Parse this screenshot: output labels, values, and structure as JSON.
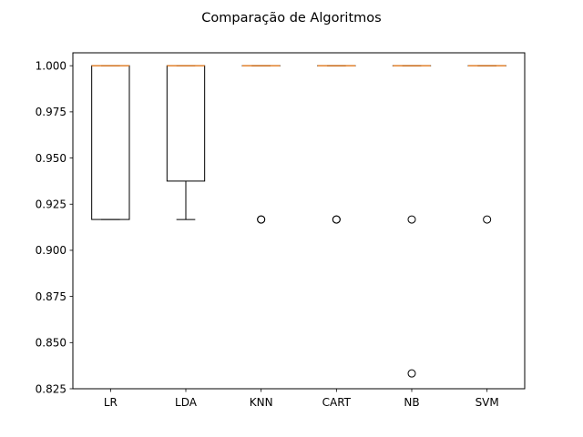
{
  "chart_data": {
    "type": "box",
    "title": "Comparação de Algoritmos",
    "xlabel": "",
    "ylabel": "",
    "categories": [
      "LR",
      "LDA",
      "KNN",
      "CART",
      "NB",
      "SVM"
    ],
    "ylim": [
      0.825,
      1.007
    ],
    "yticks": [
      0.825,
      0.85,
      0.875,
      0.9,
      0.925,
      0.95,
      0.975,
      1.0
    ],
    "ytick_labels": [
      "0.825",
      "0.850",
      "0.875",
      "0.900",
      "0.925",
      "0.950",
      "0.975",
      "1.000"
    ],
    "boxes": [
      {
        "label": "LR",
        "whislo": 0.9167,
        "q1": 0.9167,
        "med": 1.0,
        "q3": 1.0,
        "whishi": 1.0,
        "fliers": []
      },
      {
        "label": "LDA",
        "whislo": 0.9167,
        "q1": 0.9375,
        "med": 1.0,
        "q3": 1.0,
        "whishi": 1.0,
        "fliers": []
      },
      {
        "label": "KNN",
        "whislo": 1.0,
        "q1": 1.0,
        "med": 1.0,
        "q3": 1.0,
        "whishi": 1.0,
        "fliers": [
          0.9167,
          0.9167
        ]
      },
      {
        "label": "CART",
        "whislo": 1.0,
        "q1": 1.0,
        "med": 1.0,
        "q3": 1.0,
        "whishi": 1.0,
        "fliers": [
          0.9167,
          0.9167
        ]
      },
      {
        "label": "NB",
        "whislo": 1.0,
        "q1": 1.0,
        "med": 1.0,
        "q3": 1.0,
        "whishi": 1.0,
        "fliers": [
          0.9167,
          0.8333
        ]
      },
      {
        "label": "SVM",
        "whislo": 1.0,
        "q1": 1.0,
        "med": 1.0,
        "q3": 1.0,
        "whishi": 1.0,
        "fliers": [
          0.9167
        ]
      }
    ],
    "colors": {
      "box": "#000000",
      "median": "#ff7f0e",
      "flier": "#000000"
    },
    "grid": false,
    "legend": "none"
  }
}
